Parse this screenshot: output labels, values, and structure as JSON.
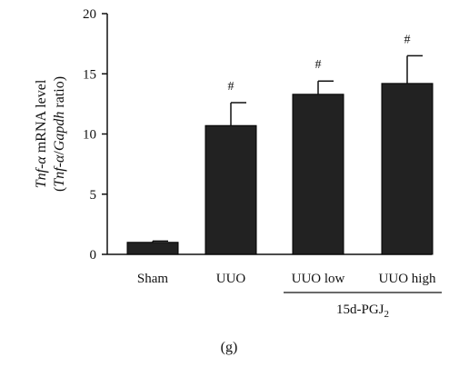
{
  "chart_data": {
    "type": "bar",
    "categories": [
      "Sham",
      "UUO",
      "UUO low",
      "UUO high"
    ],
    "values": [
      1.0,
      10.7,
      13.3,
      14.2
    ],
    "errors": [
      0.1,
      1.9,
      1.1,
      2.3
    ],
    "annotations": [
      "",
      "#",
      "#",
      "#"
    ],
    "ylim": [
      0,
      20
    ],
    "yticks": [
      0,
      5,
      10,
      15,
      20
    ],
    "ylabel": {
      "line1": [
        {
          "text": "Tnf",
          "italic": true
        },
        {
          "text": "-",
          "italic": false
        },
        {
          "text": "α",
          "italic": true
        },
        {
          "text": " mRNA level",
          "italic": false
        }
      ],
      "line2": [
        {
          "text": "(",
          "italic": false
        },
        {
          "text": "Tnf",
          "italic": true
        },
        {
          "text": "-",
          "italic": false
        },
        {
          "text": "α",
          "italic": true
        },
        {
          "text": "/",
          "italic": false
        },
        {
          "text": "Gapdh",
          "italic": true
        },
        {
          "text": " ratio)",
          "italic": false
        }
      ]
    },
    "group_label": {
      "base": "15d-PGJ",
      "subscript": "2",
      "span": [
        "UUO low",
        "UUO high"
      ]
    },
    "bar_color": "#222222",
    "grid": false
  },
  "panel_label": "(g)"
}
